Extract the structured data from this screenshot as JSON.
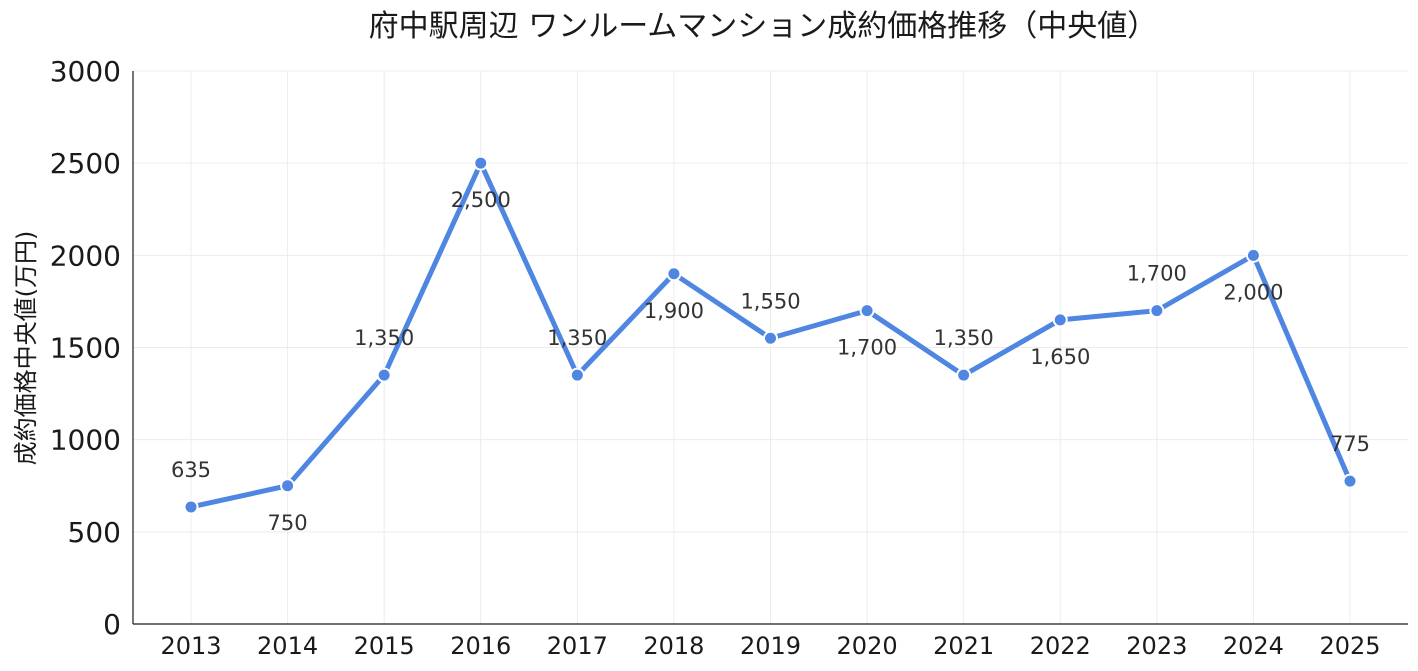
{
  "chart_data": {
    "type": "line",
    "title": "府中駅周辺 ワンルームマンション成約価格推移（中央値）",
    "xlabel": "",
    "ylabel": "成約価格中央値(万円)",
    "ylim": [
      0,
      3000
    ],
    "yticks": [
      "0",
      "500",
      "1000",
      "1500",
      "2000",
      "2500",
      "3000"
    ],
    "x": [
      "2013",
      "2014",
      "2015",
      "2016",
      "2017",
      "2018",
      "2019",
      "2020",
      "2021",
      "2022",
      "2023",
      "2024",
      "2025"
    ],
    "series": [
      {
        "values": [
          635,
          750,
          1350,
          2500,
          1350,
          1900,
          1550,
          1700,
          1350,
          1650,
          1700,
          2000,
          775
        ],
        "labels": [
          "635",
          "750",
          "1,350",
          "2,500",
          "1,350",
          "1,900",
          "1,550",
          "1,700",
          "1,350",
          "1,650",
          "1,700",
          "2,000",
          "775"
        ],
        "label_position": [
          "above",
          "below",
          "above",
          "below",
          "above",
          "below",
          "above",
          "below",
          "above",
          "below",
          "above",
          "below",
          "above"
        ],
        "color": "#4f86e2"
      }
    ],
    "grid": true,
    "legend": "none"
  }
}
